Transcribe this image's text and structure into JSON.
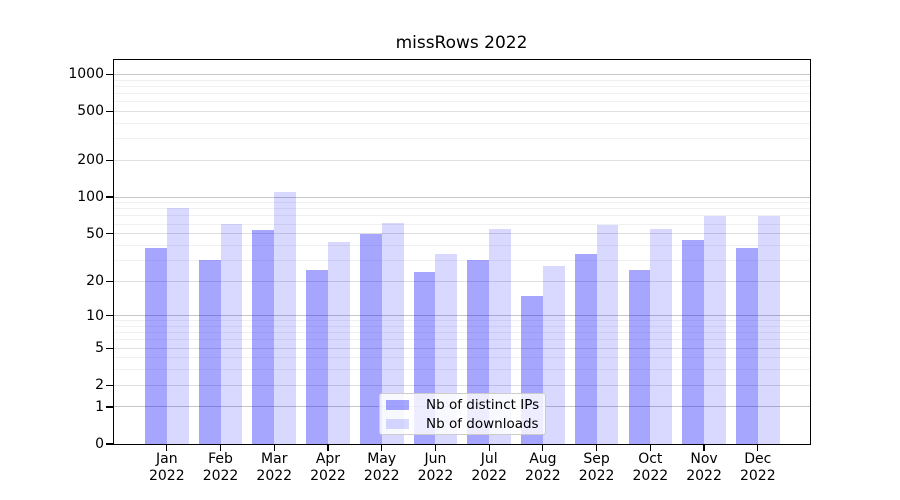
{
  "chart_data": {
    "type": "bar",
    "title": "missRows 2022",
    "categories": [
      "Jan",
      "Feb",
      "Mar",
      "Apr",
      "May",
      "Jun",
      "Jul",
      "Aug",
      "Sep",
      "Oct",
      "Nov",
      "Dec"
    ],
    "category_year": "2022",
    "series": [
      {
        "name": "Nb of distinct IPs",
        "color": "rgba(0,0,255,0.35)",
        "values": [
          38,
          30,
          54,
          25,
          50,
          24,
          30,
          15,
          34,
          25,
          44,
          38
        ]
      },
      {
        "name": "Nb of downloads",
        "color": "rgba(0,0,255,0.15)",
        "values": [
          82,
          60,
          110,
          43,
          61,
          34,
          55,
          27,
          59,
          55,
          70,
          70
        ]
      }
    ],
    "y_scale": "log1p",
    "y_ticks": [
      0,
      1,
      2,
      5,
      10,
      20,
      50,
      100,
      200,
      500,
      1000
    ],
    "y_minor_ticks": [
      3,
      4,
      6,
      7,
      8,
      9,
      30,
      40,
      60,
      70,
      80,
      90,
      300,
      400,
      600,
      700,
      800,
      900
    ],
    "ylim": [
      0,
      1286
    ],
    "grid": true,
    "legend": {
      "position": "lower center"
    },
    "colors": {
      "bar_ips": "#a6a6ff",
      "bar_downloads": "#d9d9ff",
      "grid_decade": "#c6c6c6",
      "grid_major": "#dfdfdf",
      "grid_minor": "#f0f0f0",
      "axis": "#000000"
    }
  }
}
